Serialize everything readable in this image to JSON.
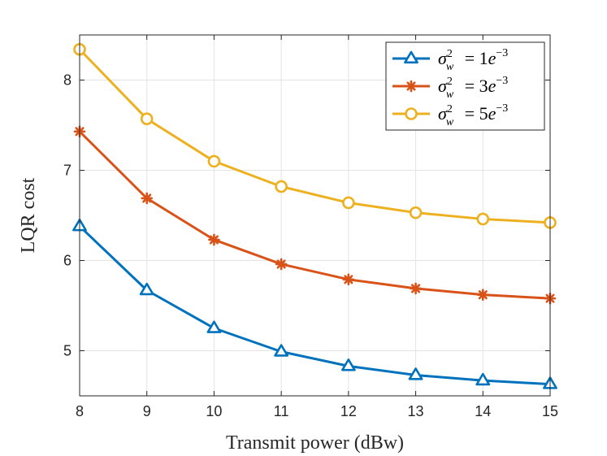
{
  "chart_data": {
    "type": "line",
    "title": "",
    "xlabel": "Transmit power (dBw)",
    "ylabel": "LQR cost",
    "xlim": [
      8,
      15
    ],
    "ylim": [
      4.5,
      8.5
    ],
    "xticks": [
      8,
      9,
      10,
      11,
      12,
      13,
      14,
      15
    ],
    "yticks": [
      5,
      6,
      7,
      8
    ],
    "grid": true,
    "legend_position": "top-right",
    "x": [
      8,
      9,
      10,
      11,
      12,
      13,
      14,
      15
    ],
    "series": [
      {
        "name": "σ_w^2 = 1e^-3",
        "label": {
          "sym": "σ",
          "sub": "w",
          "sup": "2",
          "eq": "= 1",
          "e": "e",
          "exp": "−3"
        },
        "color": "#0072BD",
        "marker": "triangle",
        "values": [
          6.38,
          5.67,
          5.25,
          4.99,
          4.83,
          4.73,
          4.67,
          4.63
        ]
      },
      {
        "name": "σ_w^2 = 3e^-3",
        "label": {
          "sym": "σ",
          "sub": "w",
          "sup": "2",
          "eq": "= 3",
          "e": "e",
          "exp": "−3"
        },
        "color": "#D95319",
        "marker": "asterisk",
        "values": [
          7.43,
          6.69,
          6.23,
          5.96,
          5.79,
          5.69,
          5.62,
          5.58
        ]
      },
      {
        "name": "σ_w^2 = 5e^-3",
        "label": {
          "sym": "σ",
          "sub": "w",
          "sup": "2",
          "eq": "= 5",
          "e": "e",
          "exp": "−3"
        },
        "color": "#EDB120",
        "marker": "circle",
        "values": [
          8.34,
          7.57,
          7.1,
          6.82,
          6.64,
          6.53,
          6.46,
          6.42
        ]
      }
    ]
  }
}
